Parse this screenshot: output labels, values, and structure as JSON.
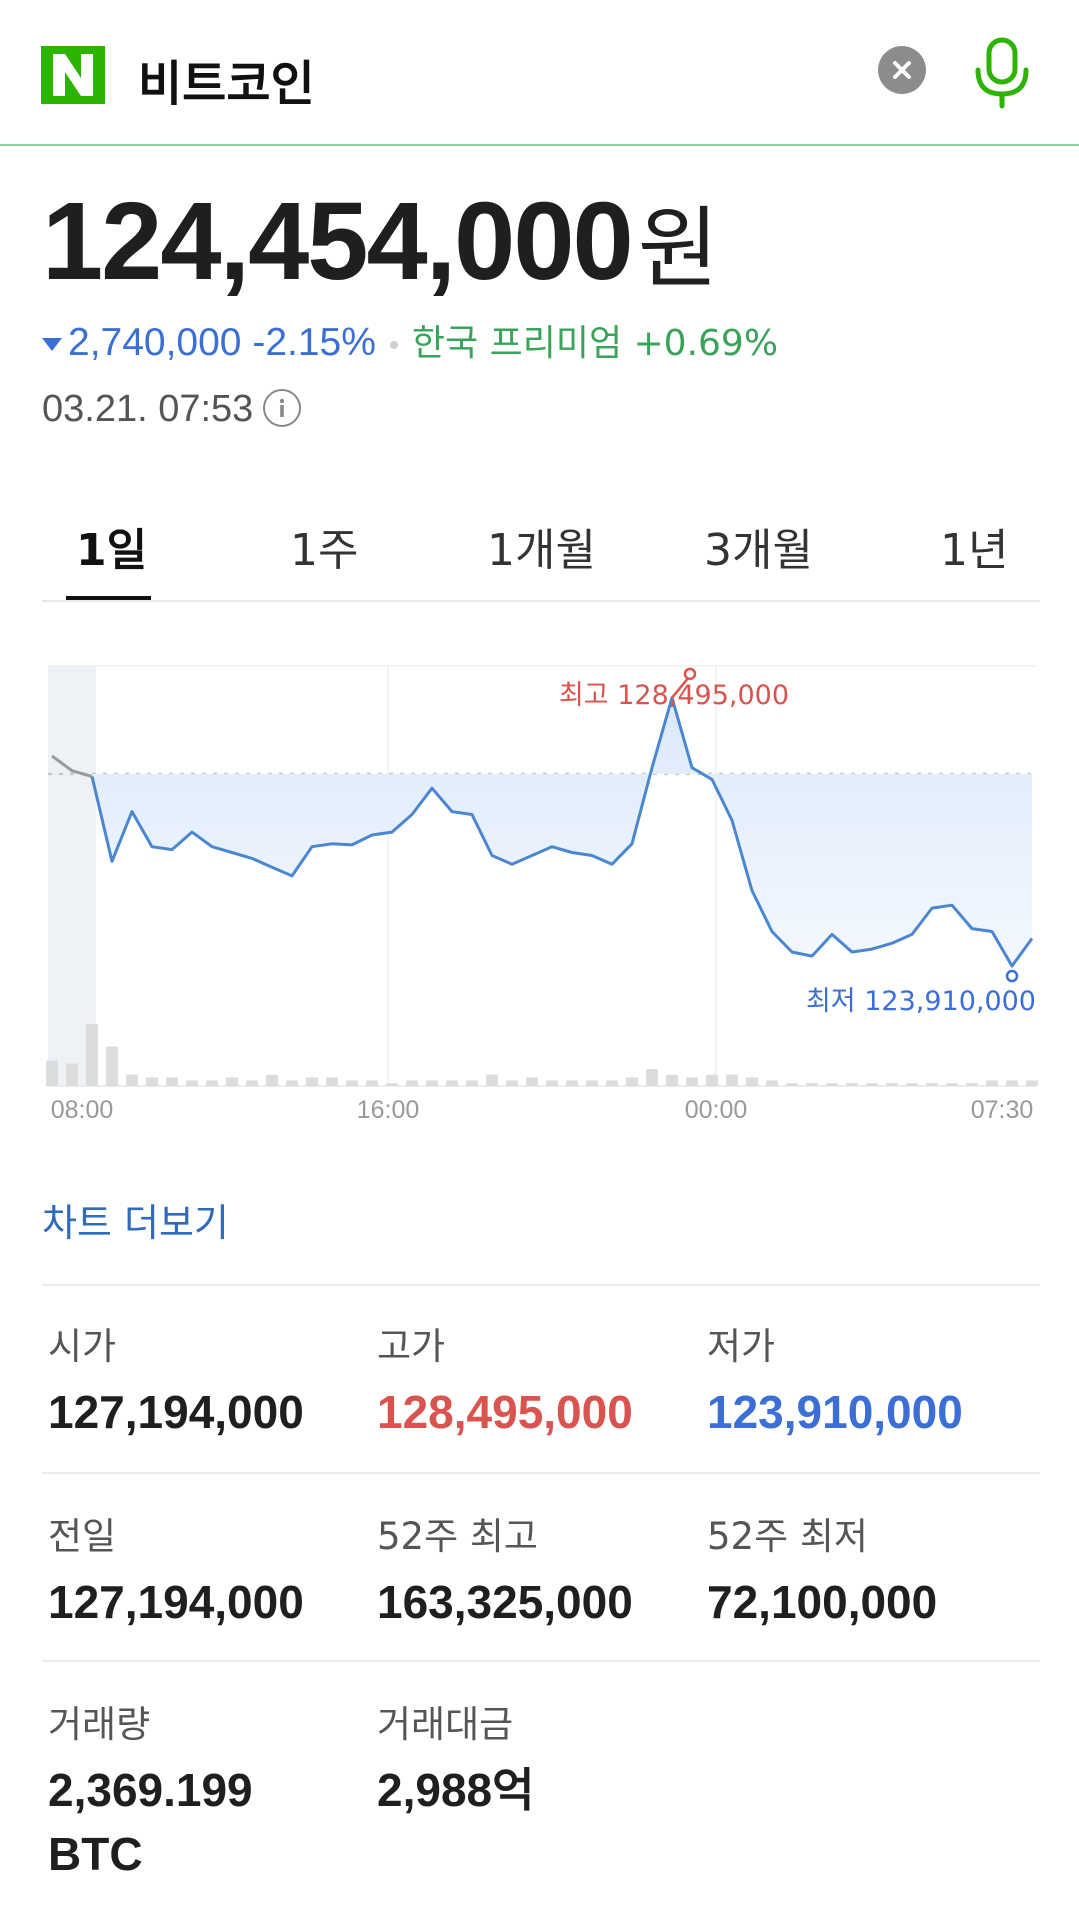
{
  "header": {
    "logo": "N",
    "query": "비트코인"
  },
  "price": {
    "value": "124,454,000",
    "unit": "원",
    "change": "2,740,000 -2.15%",
    "premium": "한국 프리미엄 +0.69%",
    "timestamp": "03.21. 07:53"
  },
  "tabs": [
    "1일",
    "1주",
    "1개월",
    "3개월",
    "1년"
  ],
  "chart_data": {
    "type": "line",
    "x_ticks": [
      "08:00",
      "16:00",
      "00:00",
      "07:30"
    ],
    "high_label": "최고 128,495,000",
    "low_label": "최저 123,910,000",
    "high": 128495000,
    "low": 123910000,
    "prev_close": 127194000,
    "values": [
      127500000,
      127250000,
      127150000,
      125700000,
      126550000,
      125950000,
      125900000,
      126200000,
      125950000,
      125850000,
      125750000,
      125600000,
      125450000,
      125950000,
      126000000,
      125980000,
      126150000,
      126200000,
      126500000,
      126950000,
      126550000,
      126500000,
      125800000,
      125650000,
      125800000,
      125950000,
      125850000,
      125800000,
      125650000,
      126000000,
      127300000,
      128495000,
      127300000,
      127100000,
      126400000,
      125200000,
      124500000,
      124150000,
      124080000,
      124450000,
      124150000,
      124200000,
      124300000,
      124450000,
      124900000,
      124950000,
      124550000,
      124500000,
      123910000,
      124380000
    ],
    "volume": [
      9,
      8,
      22,
      14,
      4,
      3,
      3,
      2,
      2,
      3,
      2,
      4,
      2,
      3,
      3,
      2,
      2,
      1,
      2,
      2,
      2,
      2,
      4,
      2,
      3,
      2,
      2,
      2,
      2,
      3,
      6,
      4,
      3,
      4,
      4,
      3,
      2,
      1,
      1,
      1,
      1,
      1,
      1,
      1,
      1,
      1,
      1,
      2,
      2,
      2
    ]
  },
  "more_chart": "차트 더보기",
  "stats": {
    "open_label": "시가",
    "open": "127,194,000",
    "high_label": "고가",
    "high": "128,495,000",
    "low_label": "저가",
    "low": "123,910,000",
    "prev_label": "전일",
    "prev": "127,194,000",
    "w52_high_label": "52주 최고",
    "w52_high": "163,325,000",
    "w52_low_label": "52주 최저",
    "w52_low": "72,100,000",
    "volume_label": "거래량",
    "volume": "2,369.199 BTC",
    "turnover_label": "거래대금",
    "turnover": "2,988억"
  },
  "colors": {
    "logo": "#2db400",
    "accent_green": "#3aa35a",
    "down": "#3b6fd6",
    "up": "#d9534f"
  }
}
